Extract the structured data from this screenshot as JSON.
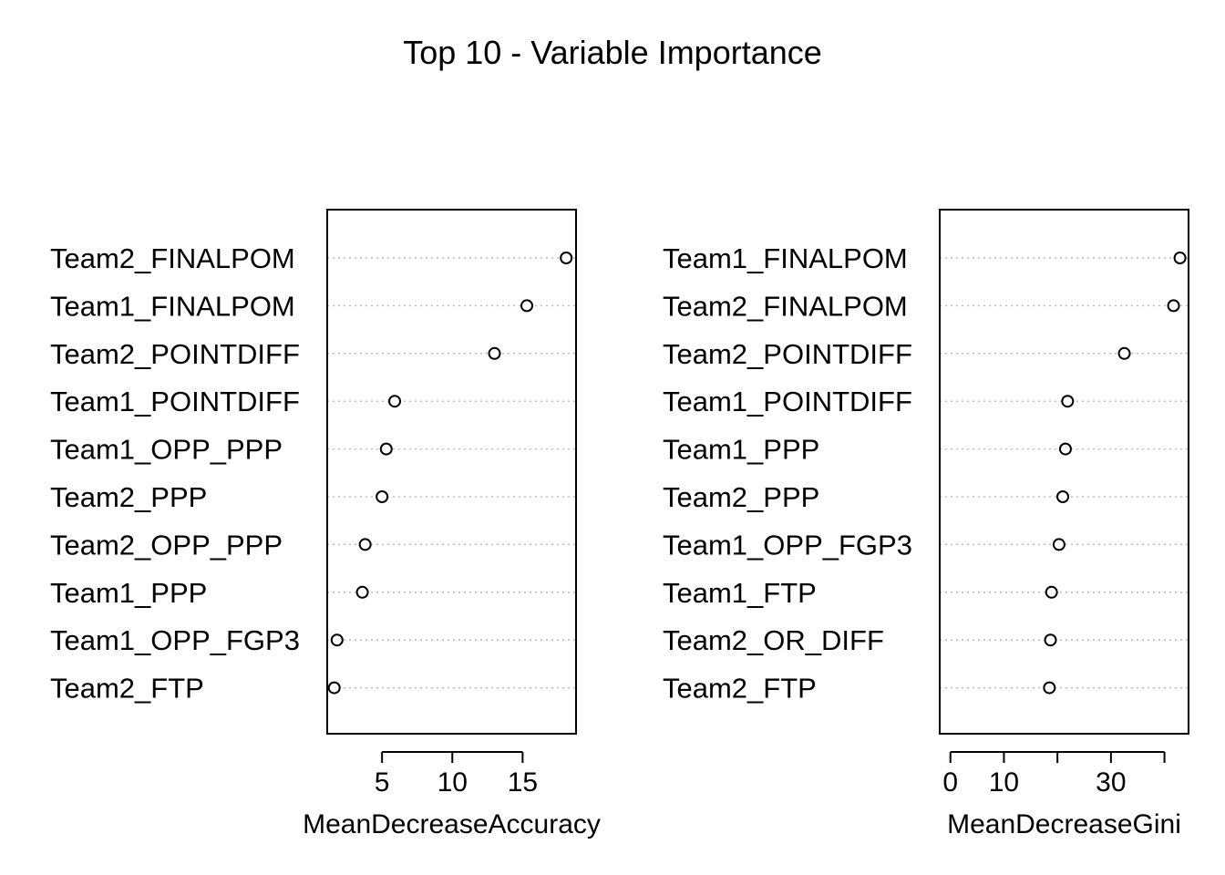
{
  "title": "Top 10 - Variable Importance",
  "chart_data": [
    {
      "type": "scatter",
      "xlabel": "MeanDecreaseAccuracy",
      "xlim": [
        1.1,
        18.8
      ],
      "xticks": [
        5,
        10,
        15
      ],
      "grid": false,
      "categories": [
        "Team2_FINALPOM",
        "Team1_FINALPOM",
        "Team2_POINTDIFF",
        "Team1_POINTDIFF",
        "Team1_OPP_PPP",
        "Team2_PPP",
        "Team2_OPP_PPP",
        "Team1_PPP",
        "Team1_OPP_FGP3",
        "Team2_FTP"
      ],
      "values": [
        18.1,
        15.3,
        13.0,
        5.9,
        5.3,
        5.0,
        3.8,
        3.6,
        1.8,
        1.6
      ]
    },
    {
      "type": "scatter",
      "xlabel": "MeanDecreaseGini",
      "xlim": [
        -2.0,
        44.5
      ],
      "xticks": [
        0,
        10,
        20,
        30,
        40
      ],
      "xtick_labels": [
        "0",
        "10",
        "",
        "30",
        ""
      ],
      "grid": false,
      "categories": [
        "Team1_FINALPOM",
        "Team2_FINALPOM",
        "Team2_POINTDIFF",
        "Team1_POINTDIFF",
        "Team1_PPP",
        "Team2_PPP",
        "Team1_OPP_FGP3",
        "Team1_FTP",
        "Team2_OR_DIFF",
        "Team2_FTP"
      ],
      "values": [
        42.9,
        41.7,
        32.5,
        21.9,
        21.5,
        21.0,
        20.3,
        18.9,
        18.7,
        18.5
      ]
    }
  ]
}
